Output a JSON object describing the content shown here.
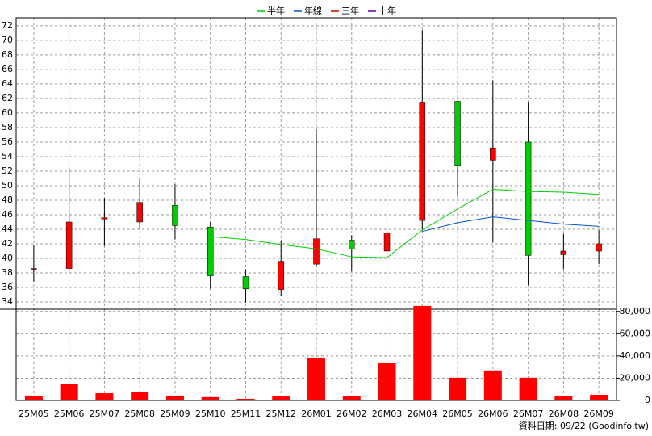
{
  "chart_data": {
    "type": "candlestick",
    "categories": [
      "25M05",
      "25M06",
      "25M07",
      "25M08",
      "25M09",
      "25M10",
      "25M11",
      "25M12",
      "26M01",
      "26M02",
      "26M03",
      "26M04",
      "26M05",
      "26M06",
      "26M07",
      "26M08",
      "26M09"
    ],
    "open": [
      38.6,
      38.6,
      45.4,
      45.0,
      47.3,
      44.3,
      37.5,
      35.7,
      39.2,
      42.5,
      41.0,
      45.2,
      61.6,
      53.5,
      56.0,
      40.5,
      41.0
    ],
    "high": [
      41.8,
      52.5,
      48.3,
      51.0,
      50.2,
      45.0,
      38.5,
      42.5,
      57.8,
      43.2,
      50.0,
      71.4,
      61.7,
      64.5,
      61.5,
      43.4,
      43.9
    ],
    "low": [
      36.8,
      38.0,
      41.7,
      44.0,
      42.6,
      35.8,
      33.9,
      34.8,
      38.8,
      38.2,
      36.8,
      43.8,
      48.5,
      42.2,
      36.3,
      38.5,
      39.2
    ],
    "close": [
      38.6,
      45.0,
      45.6,
      47.7,
      44.5,
      37.6,
      35.8,
      39.6,
      42.7,
      41.3,
      43.5,
      61.5,
      52.8,
      55.2,
      40.4,
      41.0,
      42.0
    ],
    "up_color": "#ff0000",
    "down_color": "#00cc00",
    "series": [
      {
        "name": "半年",
        "color": "#00cc00",
        "values": [
          null,
          null,
          null,
          null,
          null,
          43.0,
          42.6,
          41.9,
          41.3,
          40.2,
          40.1,
          43.9,
          46.8,
          49.5,
          49.2,
          49.1,
          48.8
        ]
      },
      {
        "name": "年線",
        "color": "#0055cc",
        "values": [
          null,
          null,
          null,
          null,
          null,
          null,
          null,
          null,
          null,
          null,
          null,
          43.7,
          44.9,
          45.7,
          45.2,
          44.7,
          44.4
        ]
      },
      {
        "name": "三年",
        "color": "#cc0000",
        "values": [
          null,
          null,
          null,
          null,
          null,
          null,
          null,
          null,
          null,
          null,
          null,
          null,
          null,
          null,
          null,
          null,
          null
        ]
      },
      {
        "name": "十年",
        "color": "#5500aa",
        "values": [
          null,
          null,
          null,
          null,
          null,
          null,
          null,
          null,
          null,
          null,
          null,
          null,
          null,
          null,
          null,
          null,
          null
        ]
      }
    ],
    "ylim": [
      33,
      73.1
    ],
    "yticks": [
      34,
      36,
      38,
      40,
      42,
      44,
      46,
      48,
      50,
      52,
      54,
      56,
      58,
      60,
      62,
      64,
      66,
      68,
      70,
      72
    ],
    "grid": true,
    "volume": {
      "color": "#ff0000",
      "values": [
        4400,
        14500,
        6500,
        8000,
        4400,
        3000,
        1500,
        3600,
        38500,
        3600,
        33500,
        85000,
        20400,
        27000,
        20400,
        3600,
        5100
      ],
      "ylim": [
        0,
        82000
      ],
      "yticks": [
        0,
        {
          "value": 20000,
          "label": "20,000"
        },
        {
          "value": 40000,
          "label": "40,000"
        },
        {
          "value": 60000,
          "label": "60,000"
        },
        {
          "value": 80000,
          "label": "80,000"
        }
      ]
    },
    "footer": "資料日期: 09/22 (Goodinfo.tw)"
  }
}
